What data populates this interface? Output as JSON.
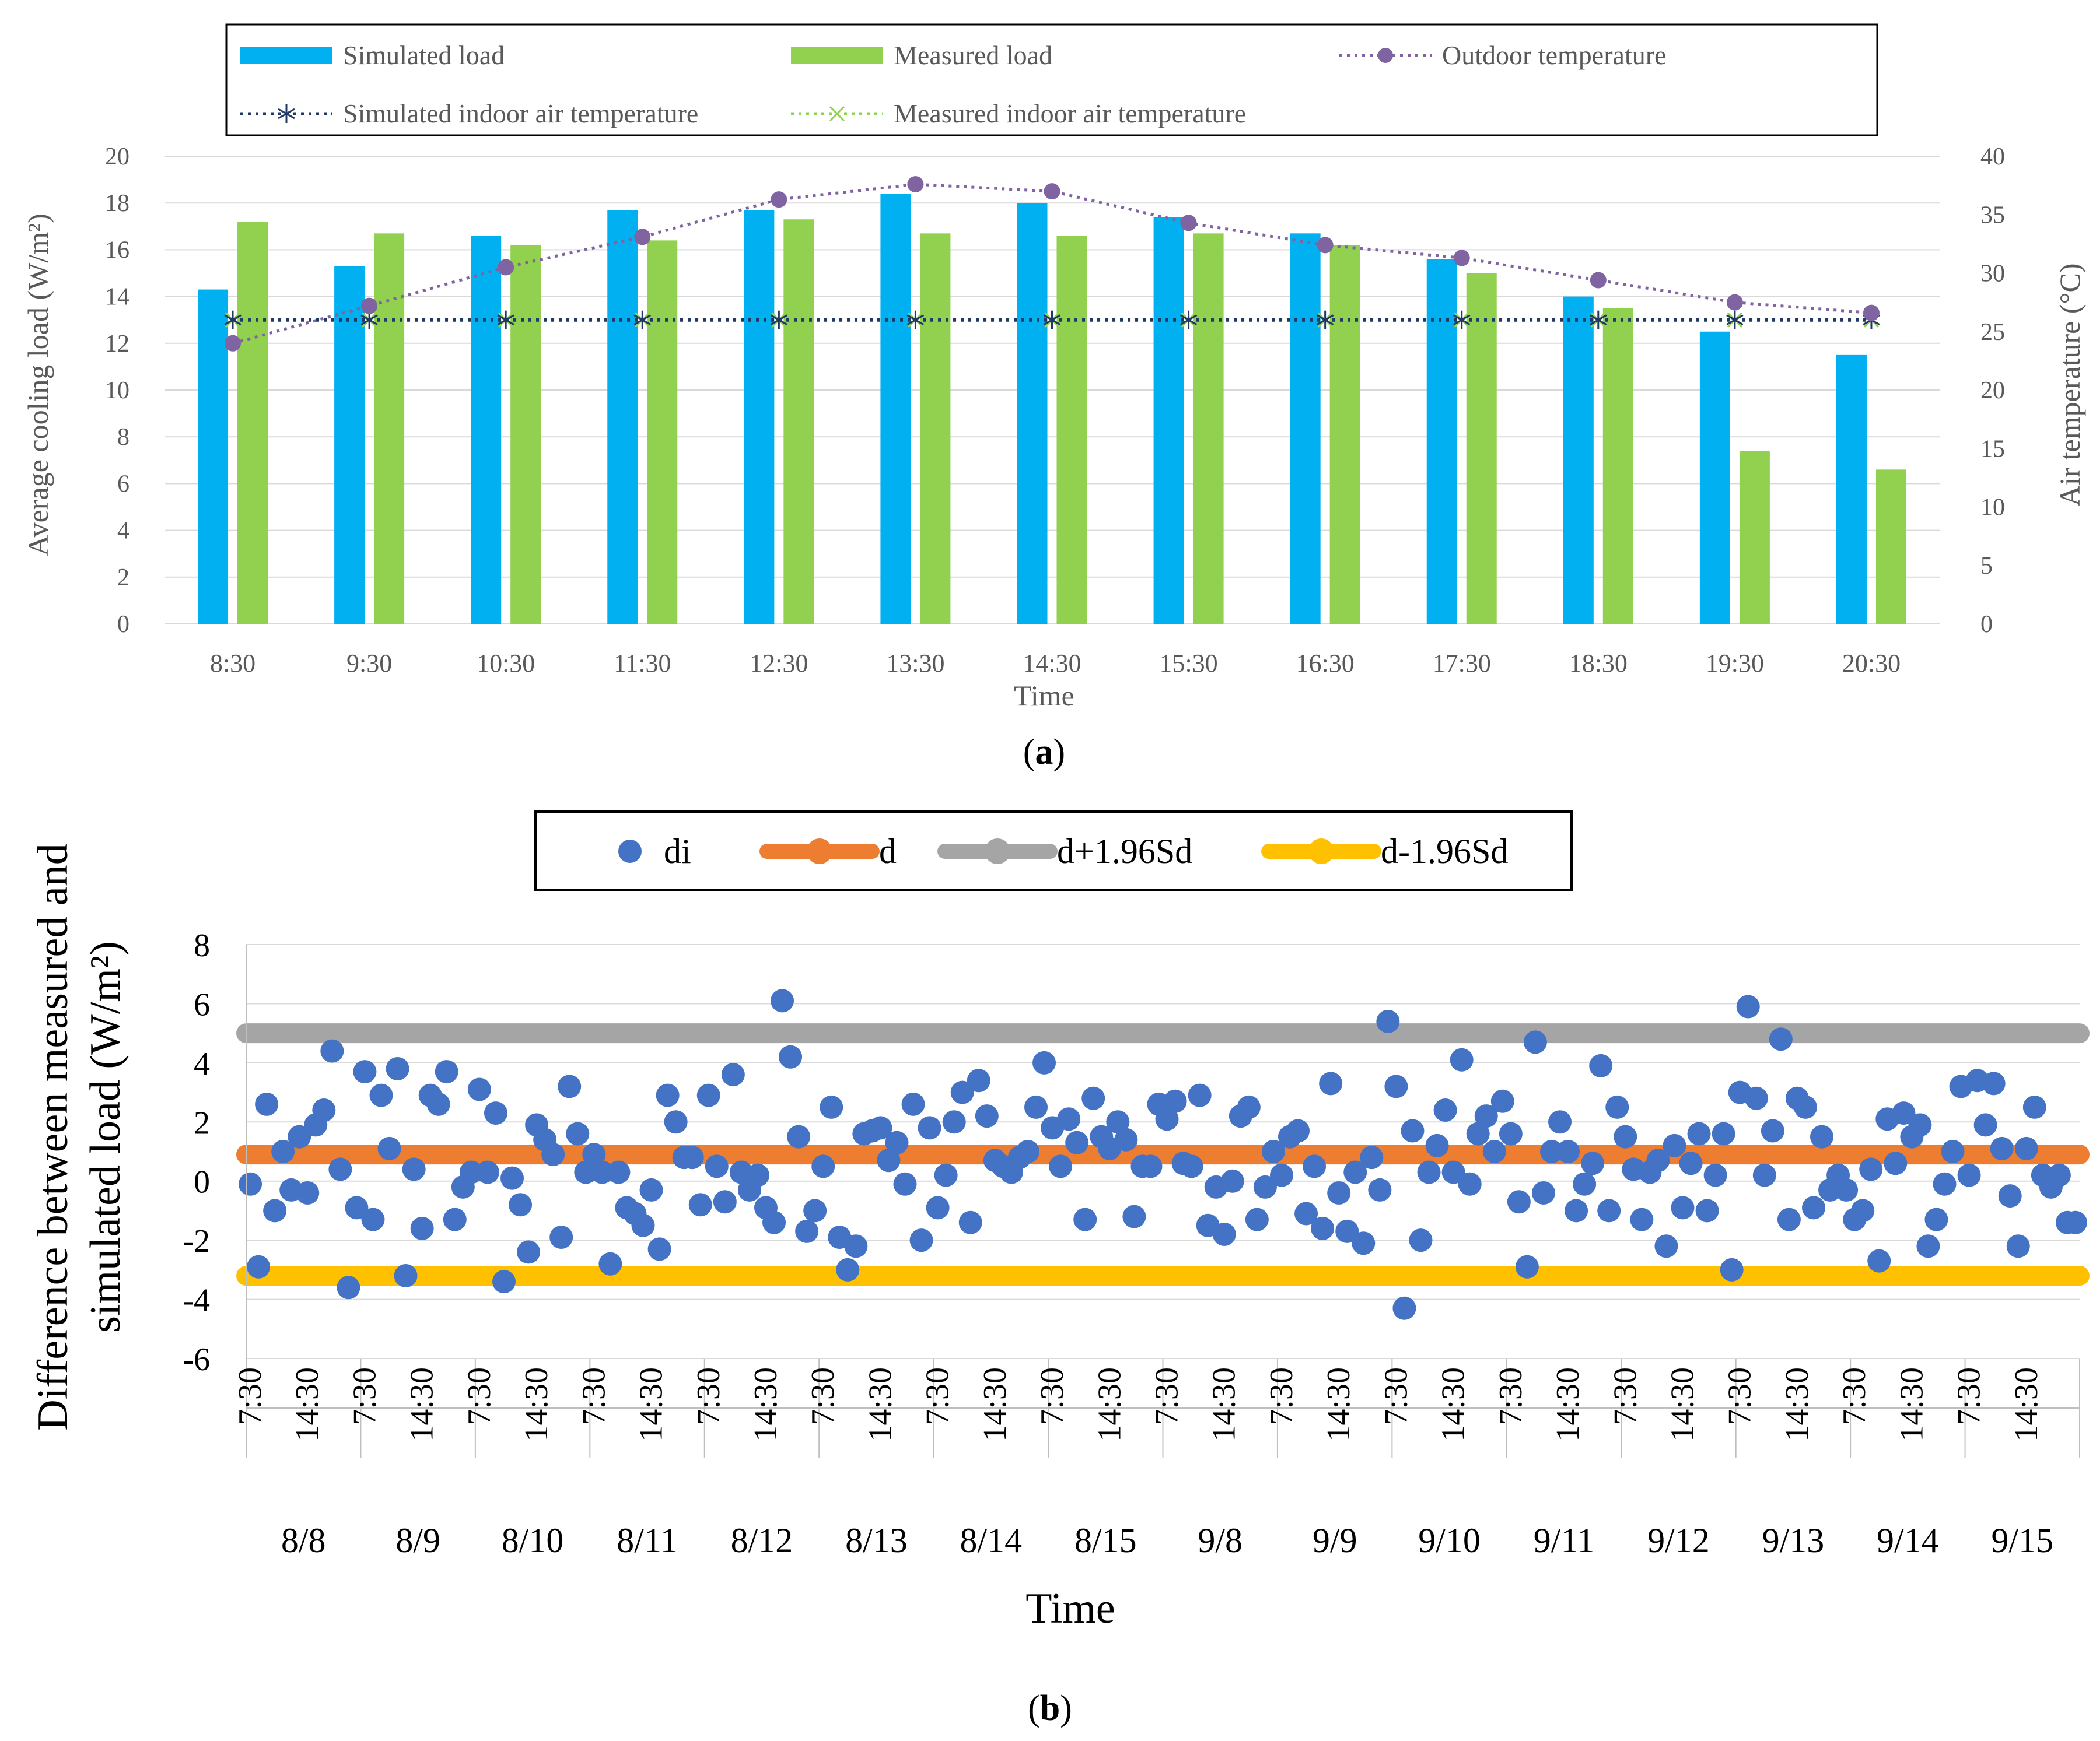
{
  "colors": {
    "simulated_load": "#00B0F0",
    "measured_load": "#92D050",
    "outdoor_temp": "#8064A2",
    "sim_indoor_temp": "#1F3864",
    "meas_indoor_temp": "#92D050",
    "di": "#4472C4",
    "d": "#ED7D31",
    "d_upper": "#A5A5A5",
    "d_lower": "#FFC000",
    "grid": "#D9D9D9",
    "axis_text": "#595959"
  },
  "chart_data": [
    {
      "id": "a",
      "type": "bar",
      "panel_label": "a",
      "title": "",
      "xlabel": "Time",
      "ylabel": "Average cooling load (W/m²)",
      "y2label": "Air temperature (°C)",
      "categories": [
        "8:30",
        "9:30",
        "10:30",
        "11:30",
        "12:30",
        "13:30",
        "14:30",
        "15:30",
        "16:30",
        "17:30",
        "18:30",
        "19:30",
        "20:30"
      ],
      "ylim": [
        0,
        20
      ],
      "yticks": [
        "0",
        "2",
        "4",
        "6",
        "8",
        "10",
        "12",
        "14",
        "16",
        "18",
        "20"
      ],
      "y2lim": [
        0,
        40
      ],
      "y2ticks": [
        "0",
        "5",
        "10",
        "15",
        "20",
        "25",
        "30",
        "35",
        "40"
      ],
      "legend_position": "top",
      "series": [
        {
          "name": "Simulated load",
          "kind": "bar",
          "axis": "left",
          "values": [
            14.3,
            15.3,
            16.6,
            17.7,
            17.7,
            18.4,
            18.0,
            17.4,
            16.7,
            15.6,
            14.0,
            12.5,
            11.5
          ]
        },
        {
          "name": "Measured load",
          "kind": "bar",
          "axis": "left",
          "values": [
            17.2,
            16.7,
            16.2,
            16.4,
            17.3,
            16.7,
            16.6,
            16.7,
            16.2,
            15.0,
            13.5,
            7.4,
            6.6
          ]
        },
        {
          "name": "Outdoor temperature",
          "kind": "line",
          "axis": "right",
          "values": [
            24.0,
            27.2,
            30.5,
            33.1,
            36.3,
            37.6,
            37.0,
            34.3,
            32.4,
            31.3,
            29.4,
            27.5,
            26.6
          ]
        },
        {
          "name": "Simulated indoor air temperature",
          "kind": "line",
          "axis": "right",
          "values": [
            26,
            26,
            26,
            26,
            26,
            26,
            26,
            26,
            26,
            26,
            26,
            26,
            26
          ]
        },
        {
          "name": "Measured indoor air temperature",
          "kind": "line",
          "axis": "right",
          "values": [
            26,
            26,
            26,
            26,
            26,
            26,
            26,
            26,
            26,
            26,
            26,
            26,
            26
          ]
        }
      ]
    },
    {
      "id": "b",
      "type": "scatter",
      "panel_label": "b",
      "title": "",
      "xlabel": "Time",
      "ylabel_line1": "Difference between measured and",
      "ylabel_line2": "simulated load (W/m²)",
      "ylim": [
        -6,
        8
      ],
      "yticks": [
        "-6",
        "-4",
        "-2",
        "0",
        "2",
        "4",
        "6",
        "8"
      ],
      "days": [
        "8/8",
        "8/9",
        "8/10",
        "8/11",
        "8/12",
        "8/13",
        "8/14",
        "8/15",
        "9/8",
        "9/9",
        "9/10",
        "9/11",
        "9/12",
        "9/13",
        "9/14",
        "9/15"
      ],
      "hour_ticks": [
        "7:30",
        "14:30"
      ],
      "points_per_day": 14,
      "legend_position": "top",
      "lines": {
        "d": 0.9,
        "d_upper": 5.0,
        "d_lower": -3.2
      },
      "legend": [
        "di",
        "d",
        "d+1.96Sd",
        "d-1.96Sd"
      ],
      "di": [
        -0.1,
        -2.9,
        2.6,
        -1.0,
        1.0,
        -0.3,
        1.5,
        -0.4,
        1.9,
        2.4,
        4.4,
        0.4,
        -3.6,
        -0.9,
        3.7,
        -1.3,
        2.9,
        1.1,
        3.8,
        -3.2,
        0.4,
        -1.6,
        2.9,
        2.6,
        3.7,
        -1.3,
        -0.2,
        0.3,
        3.1,
        0.3,
        2.3,
        -3.4,
        0.1,
        -0.8,
        -2.4,
        1.9,
        1.4,
        0.9,
        -1.9,
        3.2,
        1.6,
        0.3,
        0.9,
        0.3,
        -2.8,
        0.3,
        -0.9,
        -1.1,
        -1.5,
        -0.3,
        -2.3,
        2.9,
        2.0,
        0.8,
        0.8,
        -0.8,
        2.9,
        0.5,
        -0.7,
        3.6,
        0.3,
        -0.3,
        0.2,
        -0.9,
        -1.4,
        6.1,
        4.2,
        1.5,
        -1.7,
        -1.0,
        0.5,
        2.5,
        -1.9,
        -3.0,
        -2.2,
        1.6,
        1.7,
        1.8,
        0.7,
        1.3,
        -0.1,
        2.6,
        -2.0,
        1.8,
        -0.9,
        0.2,
        2.0,
        3.0,
        -1.4,
        3.4,
        2.2,
        0.7,
        0.5,
        0.3,
        0.8,
        1.0,
        2.5,
        4.0,
        1.8,
        0.5,
        2.1,
        1.3,
        -1.3,
        2.8,
        1.5,
        1.1,
        2.0,
        1.4,
        -1.2,
        0.5,
        0.5,
        2.6,
        2.1,
        2.7,
        0.6,
        0.5,
        2.9,
        -1.5,
        -0.2,
        -1.8,
        0.0,
        2.2,
        2.5,
        -1.3,
        -0.2,
        1.0,
        0.2,
        1.5,
        1.7,
        -1.1,
        0.5,
        -1.6,
        3.3,
        -0.4,
        -1.7,
        0.3,
        -2.1,
        0.8,
        -0.3,
        5.4,
        3.2,
        -4.3,
        1.7,
        -2.0,
        0.3,
        1.2,
        2.4,
        0.3,
        4.1,
        -0.1,
        1.6,
        2.2,
        1.0,
        2.7,
        1.6,
        -0.7,
        -2.9,
        4.7,
        -0.4,
        1.0,
        2.0,
        1.0,
        -1.0,
        -0.1,
        0.6,
        3.9,
        -1.0,
        2.5,
        1.5,
        0.4,
        -1.3,
        0.3,
        0.7,
        -2.2,
        1.2,
        -0.9,
        0.6,
        1.6,
        -1.0,
        0.2,
        1.6,
        -3.0,
        3.0,
        5.9,
        2.8,
        0.2,
        1.7,
        4.8,
        -1.3,
        2.8,
        2.5,
        -0.9,
        1.5,
        -0.3,
        0.2,
        -0.3,
        -1.3,
        -1.0,
        0.4,
        -2.7,
        2.1,
        0.6,
        2.3,
        1.5,
        1.9,
        -2.2,
        -1.3,
        -0.1,
        1.0,
        3.2,
        0.2,
        3.4,
        1.9,
        3.3,
        1.1,
        -0.5,
        -2.2,
        1.1,
        2.5,
        0.2,
        -0.2,
        0.2,
        -1.4,
        -1.4
      ]
    }
  ]
}
